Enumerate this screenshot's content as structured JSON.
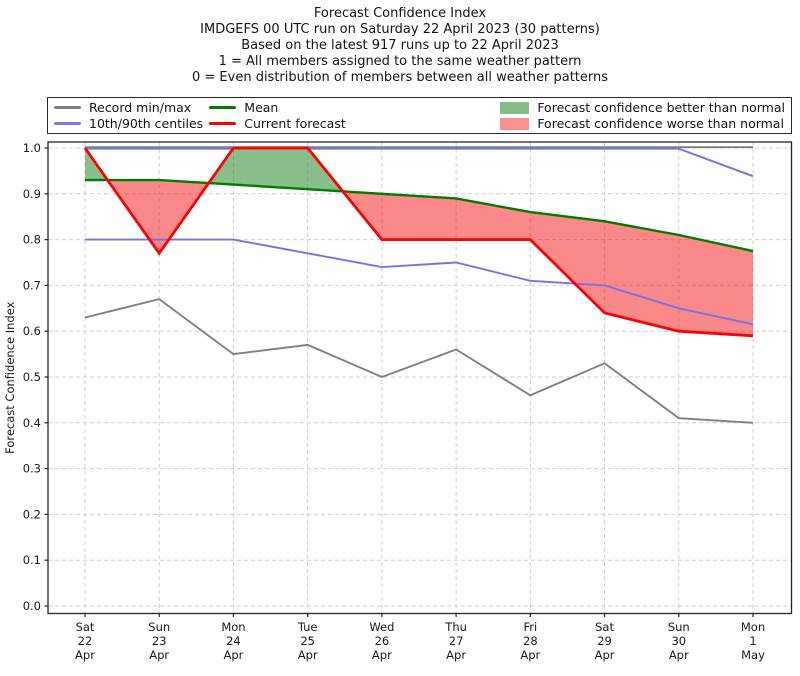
{
  "title": {
    "line1": "Forecast Confidence Index",
    "line2": "IMDGEFS 00 UTC run on Saturday 22 April 2023 (30 patterns)",
    "line3": "Based on the latest 917 runs up to 22 April 2023",
    "line4": "1 = All members assigned to the same weather pattern",
    "line5": "0 = Even distribution of members between all weather patterns"
  },
  "legend": {
    "columns": [
      [
        {
          "type": "line",
          "color": "#7f7f7f",
          "label": "Record min/max"
        },
        {
          "type": "line",
          "color": "#7b7bee",
          "label": "10th/90th centiles"
        }
      ],
      [
        {
          "type": "line",
          "color": "#007d00",
          "label": "Mean"
        },
        {
          "type": "line",
          "color": "#fe0000",
          "label": "Current forecast"
        }
      ],
      [
        {
          "type": "patch",
          "color": "#85bd85",
          "label": "Forecast confidence better than normal"
        },
        {
          "type": "patch",
          "color": "#f89090",
          "label": "Forecast confidence worse than normal"
        }
      ]
    ]
  },
  "chart_data": {
    "type": "line",
    "title": "Forecast Confidence Index",
    "ylabel": "Forecast Confidence Index",
    "ylim": [
      0.0,
      1.0
    ],
    "grid": true,
    "legend_position": "top",
    "y_ticks": [
      "0.0",
      "0.1",
      "0.2",
      "0.3",
      "0.4",
      "0.5",
      "0.6",
      "0.7",
      "0.8",
      "0.9",
      "1.0"
    ],
    "categories": [
      [
        "Sat",
        "22",
        "Apr"
      ],
      [
        "Sun",
        "23",
        "Apr"
      ],
      [
        "Mon",
        "24",
        "Apr"
      ],
      [
        "Tue",
        "25",
        "Apr"
      ],
      [
        "Wed",
        "26",
        "Apr"
      ],
      [
        "Thu",
        "27",
        "Apr"
      ],
      [
        "Fri",
        "28",
        "Apr"
      ],
      [
        "Sat",
        "29",
        "Apr"
      ],
      [
        "Sun",
        "30",
        "Apr"
      ],
      [
        "Mon",
        "1",
        "May"
      ]
    ],
    "series": [
      {
        "name": "Record max",
        "color": "#7f7f7f",
        "values": [
          1.0,
          1.0,
          1.0,
          1.0,
          1.0,
          1.0,
          1.0,
          1.0,
          1.0,
          1.0
        ]
      },
      {
        "name": "Record min",
        "color": "#7f7f7f",
        "values": [
          0.63,
          0.67,
          0.55,
          0.57,
          0.5,
          0.56,
          0.46,
          0.53,
          0.41,
          0.4
        ]
      },
      {
        "name": "90th centile",
        "color": "#7373e8",
        "values": [
          1.0,
          1.0,
          1.0,
          1.0,
          1.0,
          1.0,
          1.0,
          1.0,
          1.0,
          0.94
        ]
      },
      {
        "name": "10th centile",
        "color": "#7373e8",
        "values": [
          0.8,
          0.8,
          0.8,
          0.77,
          0.74,
          0.75,
          0.71,
          0.7,
          0.65,
          0.615
        ]
      },
      {
        "name": "Mean",
        "color": "#007d00",
        "values": [
          0.93,
          0.93,
          0.92,
          0.91,
          0.9,
          0.89,
          0.86,
          0.84,
          0.81,
          0.775
        ]
      },
      {
        "name": "Current forecast",
        "color": "#fe0000",
        "values": [
          1.0,
          0.77,
          1.0,
          1.0,
          0.8,
          0.8,
          0.8,
          0.64,
          0.6,
          0.59
        ]
      }
    ],
    "fills": {
      "between": [
        "Current forecast",
        "Mean"
      ],
      "better_color": "rgba(40,135,40,0.55)",
      "worse_color": "rgba(248,40,40,0.55)"
    }
  }
}
